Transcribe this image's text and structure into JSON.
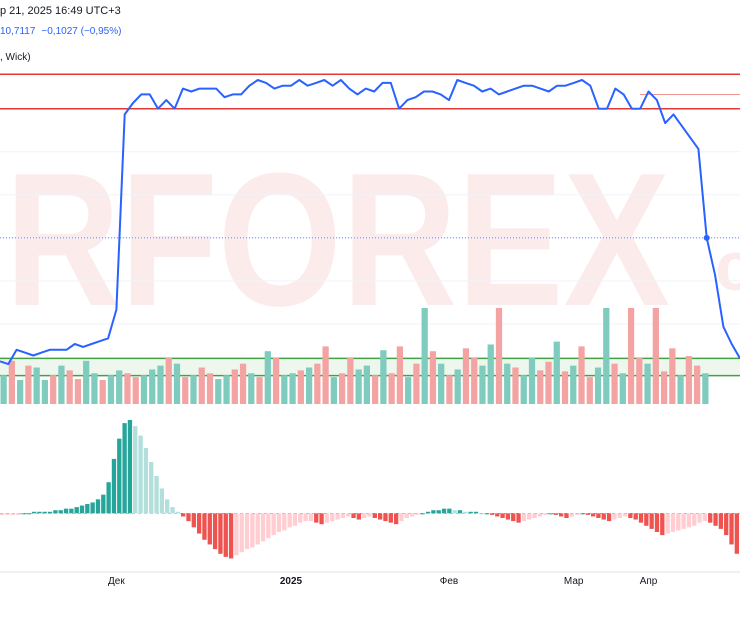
{
  "header": {
    "date_text": "р 21, 2025 16:49 UTC+3",
    "quote_value": "10,7117",
    "quote_change": "−0,1027 (−0,95%)",
    "indicator_label": ", Wick)"
  },
  "watermark": {
    "text": "RFOREX",
    "suffix": "c",
    "color": "#e23c3c"
  },
  "colors": {
    "price_line": "#2962ff",
    "resistance": "#e53935",
    "support_zone": "#43a047",
    "zone_fill": "#e8f5e9",
    "volume_up": "#7fcbbd",
    "volume_down": "#f4a3a3",
    "osc_up_strong": "#26a69a",
    "osc_up_weak": "#b2dfdb",
    "osc_down_strong": "#ef5350",
    "osc_down_weak": "#ffcdd2"
  },
  "chart_data": {
    "type": "line",
    "x_axis": {
      "tick_labels": [
        "Дек",
        "2025",
        "Фев",
        "Мар",
        "Апр"
      ],
      "tick_index": [
        14,
        35,
        54,
        69,
        78
      ]
    },
    "price": {
      "y_range": [
        0,
        100
      ],
      "values": [
        2,
        1,
        6,
        5,
        4,
        5,
        6,
        6,
        6,
        8,
        7,
        8,
        9,
        10,
        20,
        88,
        92,
        95,
        95,
        90,
        93,
        90,
        97,
        96,
        97,
        97,
        97,
        94,
        95,
        95,
        98,
        100,
        99,
        97,
        98,
        98,
        100,
        98,
        99,
        100,
        98,
        100,
        97,
        95,
        97,
        96,
        99,
        99,
        90,
        93,
        94,
        96,
        96,
        95,
        93,
        100,
        99,
        98,
        96,
        97,
        95,
        96,
        97,
        98,
        98,
        97,
        96,
        98,
        98,
        99,
        100,
        98,
        90,
        90,
        97,
        95,
        90,
        90,
        96,
        93,
        85,
        88,
        84,
        80,
        76,
        45,
        32,
        14,
        8,
        3
      ]
    },
    "levels": {
      "resistance": [
        102,
        90
      ],
      "resistance_thin": 95,
      "support_zone": [
        3,
        -3
      ]
    },
    "volume": {
      "y_range": [
        0,
        100
      ],
      "values": [
        30,
        45,
        25,
        40,
        38,
        25,
        30,
        40,
        35,
        26,
        45,
        32,
        25,
        30,
        35,
        32,
        28,
        30,
        36,
        40,
        48,
        42,
        28,
        30,
        38,
        32,
        26,
        30,
        36,
        42,
        32,
        28,
        55,
        48,
        30,
        32,
        35,
        38,
        42,
        60,
        28,
        32,
        48,
        36,
        40,
        30,
        56,
        32,
        60,
        28,
        42,
        100,
        55,
        42,
        30,
        36,
        58,
        48,
        40,
        62,
        100,
        42,
        38,
        30,
        48,
        35,
        44,
        65,
        34,
        40,
        60,
        28,
        38,
        100,
        42,
        32,
        100,
        48,
        42,
        100,
        34,
        58,
        30,
        50,
        40,
        32
      ],
      "direction": [
        1,
        0,
        1,
        0,
        1,
        1,
        0,
        1,
        0,
        0,
        1,
        1,
        0,
        1,
        1,
        0,
        0,
        1,
        1,
        1,
        0,
        1,
        0,
        1,
        0,
        0,
        1,
        1,
        0,
        0,
        1,
        0,
        1,
        0,
        1,
        1,
        0,
        1,
        0,
        0,
        1,
        0,
        0,
        1,
        1,
        0,
        1,
        0,
        0,
        1,
        0,
        1,
        0,
        1,
        0,
        1,
        0,
        0,
        1,
        1,
        0,
        1,
        0,
        1,
        1,
        0,
        0,
        1,
        0,
        1,
        0,
        0,
        1,
        1,
        0,
        1,
        0,
        0,
        1,
        0,
        0,
        0,
        1,
        0,
        0,
        1
      ]
    },
    "oscillator": {
      "y_range": [
        -30,
        60
      ],
      "values": [
        -1,
        -1,
        -1,
        -1,
        0,
        0,
        1,
        1,
        1,
        1,
        2,
        2,
        3,
        3,
        4,
        5,
        6,
        7,
        9,
        12,
        20,
        35,
        48,
        58,
        60,
        56,
        50,
        42,
        33,
        24,
        16,
        9,
        4,
        1,
        -2,
        -5,
        -9,
        -13,
        -17,
        -20,
        -23,
        -26,
        -28,
        -29,
        -27,
        -25,
        -23,
        -22,
        -20,
        -18,
        -16,
        -14,
        -12,
        -11,
        -9,
        -8,
        -6,
        -5,
        -5,
        -6,
        -7,
        -6,
        -5,
        -4,
        -3,
        -2,
        -3,
        -4,
        -3,
        -2,
        -3,
        -4,
        -5,
        -6,
        -7,
        -5,
        -3,
        -2,
        -1,
        0,
        1,
        2,
        2,
        3,
        3,
        2,
        2,
        1,
        1,
        1,
        0,
        0,
        -1,
        -2,
        -3,
        -4,
        -5,
        -6,
        -5,
        -4,
        -3,
        -2,
        -1,
        0,
        -1,
        -2,
        -3,
        -2,
        -1,
        0,
        -1,
        -2,
        -3,
        -4,
        -5,
        -4,
        -3,
        -2,
        -3,
        -4,
        -6,
        -8,
        -10,
        -12,
        -14,
        -13,
        -12,
        -11,
        -10,
        -9,
        -8,
        -6,
        -5,
        -6,
        -8,
        -10,
        -14,
        -20,
        -26
      ]
    }
  }
}
